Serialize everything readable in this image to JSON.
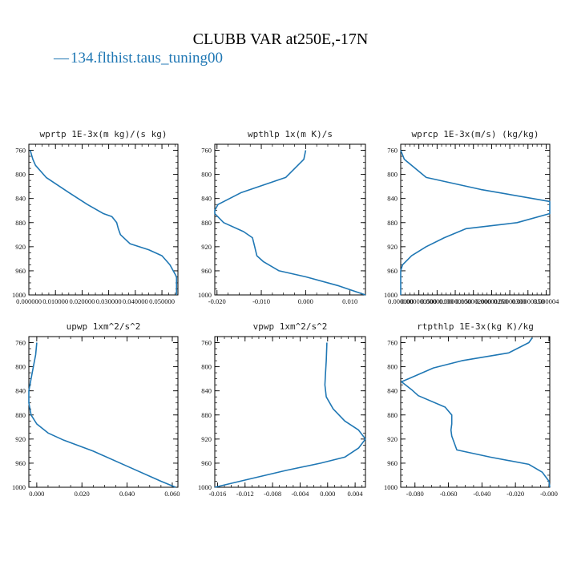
{
  "figure": {
    "title": "CLUBB VAR at250E,-17N",
    "legend": {
      "marker": "—",
      "label": "134.flthist.taus_tuning00",
      "color": "#1f77b4"
    }
  },
  "chart_data": [
    {
      "type": "line",
      "title": "wprtp  1E-3x(m kg)/(s kg)",
      "xlim": [
        0.0,
        0.056
      ],
      "ylim": [
        750,
        1000
      ],
      "y_inverted": true,
      "xticks": [
        0.0,
        0.01,
        0.02,
        0.03,
        0.04,
        0.05
      ],
      "xtick_labels": [
        "0.000000",
        "0.010000",
        "0.020000",
        "0.030000",
        "0.040000",
        "0.050000"
      ],
      "yticks": [
        760,
        800,
        840,
        880,
        920,
        960,
        1000
      ],
      "ytick_labels": [
        "760",
        "800",
        "840",
        "880",
        "920",
        "960",
        "1000"
      ],
      "series": [
        {
          "color": "#1f77b4",
          "x": [
            0.0005,
            0.0015,
            0.0025,
            0.0065,
            0.015,
            0.022,
            0.028,
            0.0312,
            0.033,
            0.0336,
            0.0344,
            0.038,
            0.045,
            0.05,
            0.053,
            0.0555,
            0.0555
          ],
          "y": [
            760,
            775,
            785,
            805,
            830,
            850,
            865,
            870,
            880,
            890,
            900,
            915,
            925,
            935,
            950,
            970,
            1000
          ]
        }
      ]
    },
    {
      "type": "line",
      "title": "wpthlp  1x(m K)/s",
      "xlim": [
        -0.0205,
        0.0135
      ],
      "ylim": [
        750,
        1000
      ],
      "y_inverted": true,
      "xticks": [
        -0.02,
        -0.01,
        0.0,
        0.01
      ],
      "xtick_labels": [
        "-0.020",
        "-0.010",
        "0.000",
        "0.010"
      ],
      "yticks": [
        760,
        800,
        840,
        880,
        920,
        960,
        1000
      ],
      "ytick_labels": [
        "760",
        "800",
        "840",
        "880",
        "920",
        "960",
        "1000"
      ],
      "series": [
        {
          "color": "#1f77b4",
          "x": [
            0.0,
            -0.0004,
            -0.0045,
            -0.0145,
            -0.0198,
            -0.0205,
            -0.0205,
            -0.0185,
            -0.014,
            -0.012,
            -0.0115,
            -0.011,
            -0.0095,
            -0.006,
            0.0,
            0.0075,
            0.0135
          ],
          "y": [
            760,
            775,
            805,
            830,
            850,
            860,
            865,
            880,
            895,
            905,
            920,
            935,
            945,
            960,
            970,
            985,
            1000
          ]
        }
      ]
    },
    {
      "type": "line",
      "title": "wprcp  1E-3x(m/s) (kg/kg)",
      "xlim": [
        0.0,
        4.1e-06
      ],
      "ylim": [
        750,
        1000
      ],
      "y_inverted": true,
      "xticks": [
        0.0,
        5e-07,
        1e-06,
        1.5e-06,
        2e-06,
        2.5e-06,
        3e-06,
        3.5e-06,
        4e-06
      ],
      "xtick_labels": [
        "0.000000",
        "0.000000500",
        "0.00000100",
        "0.00000150",
        "0.000002000",
        "0.00000250",
        "0.00000300",
        "0.00000350",
        "0.000004"
      ],
      "yticks": [
        760,
        800,
        840,
        880,
        920,
        960,
        1000
      ],
      "ytick_labels": [
        "760",
        "800",
        "840",
        "880",
        "920",
        "960",
        "1000"
      ],
      "series": [
        {
          "color": "#1f77b4",
          "x": [
            0.0,
            1e-07,
            7e-07,
            2.2e-06,
            4.1e-06,
            4.1e-06,
            3.2e-06,
            1.8e-06,
            1.2e-06,
            7e-07,
            3e-07,
            5e-08,
            0.0,
            0.0
          ],
          "y": [
            760,
            775,
            805,
            825,
            845,
            865,
            880,
            890,
            905,
            920,
            935,
            950,
            960,
            1000
          ]
        }
      ]
    },
    {
      "type": "line",
      "title": "upwp  1xm^2/s^2",
      "xlim": [
        -0.0035,
        0.0625
      ],
      "ylim": [
        750,
        1000
      ],
      "y_inverted": true,
      "xticks": [
        0.0,
        0.02,
        0.04,
        0.06
      ],
      "xtick_labels": [
        "0.000",
        "0.020",
        "0.040",
        "0.060"
      ],
      "yticks": [
        760,
        800,
        840,
        880,
        920,
        960,
        1000
      ],
      "ytick_labels": [
        "760",
        "800",
        "840",
        "880",
        "920",
        "960",
        "1000"
      ],
      "series": [
        {
          "color": "#1f77b4",
          "x": [
            0.0,
            -0.0005,
            -0.0015,
            -0.0025,
            -0.0035,
            -0.0035,
            -0.0025,
            0.0,
            0.005,
            0.012,
            0.025,
            0.04,
            0.055,
            0.0615
          ],
          "y": [
            760,
            780,
            800,
            820,
            840,
            860,
            880,
            895,
            910,
            922,
            940,
            965,
            990,
            1000
          ]
        }
      ]
    },
    {
      "type": "line",
      "title": "vpwp  1xm^2/s^2",
      "xlim": [
        -0.0164,
        0.0055
      ],
      "ylim": [
        750,
        1000
      ],
      "y_inverted": true,
      "xticks": [
        -0.016,
        -0.012,
        -0.008,
        -0.004,
        0.0,
        0.004
      ],
      "xtick_labels": [
        "-0.016",
        "-0.012",
        "-0.008",
        "-0.004",
        "0.000",
        "0.004"
      ],
      "yticks": [
        760,
        800,
        840,
        880,
        920,
        960,
        1000
      ],
      "ytick_labels": [
        "760",
        "800",
        "840",
        "880",
        "920",
        "960",
        "1000"
      ],
      "series": [
        {
          "color": "#1f77b4",
          "x": [
            -0.0001,
            -0.0002,
            -0.0003,
            -0.0004,
            -0.0002,
            0.0008,
            0.0025,
            0.0045,
            0.0055,
            0.0045,
            0.0025,
            -0.001,
            -0.006,
            -0.012,
            -0.0164
          ],
          "y": [
            760,
            790,
            810,
            830,
            850,
            870,
            890,
            905,
            920,
            935,
            950,
            960,
            972,
            988,
            1000
          ]
        }
      ]
    },
    {
      "type": "line",
      "title": "rtpthlp  1E-3x(kg K)/kg",
      "xlim": [
        -0.0885,
        0.0005
      ],
      "ylim": [
        750,
        1000
      ],
      "y_inverted": true,
      "xticks": [
        -0.08,
        -0.06,
        -0.04,
        -0.02,
        0.0
      ],
      "xtick_labels": [
        "-0.080",
        "-0.060",
        "-0.040",
        "-0.020",
        "-0.000"
      ],
      "yticks": [
        760,
        800,
        840,
        880,
        920,
        960,
        1000
      ],
      "ytick_labels": [
        "760",
        "800",
        "840",
        "880",
        "920",
        "960",
        "1000"
      ],
      "series": [
        {
          "color": "#1f77b4",
          "x": [
            -0.01,
            -0.012,
            -0.024,
            -0.052,
            -0.069,
            -0.088,
            -0.082,
            -0.078,
            -0.062,
            -0.058,
            -0.058,
            -0.0585,
            -0.058,
            -0.055,
            -0.035,
            -0.012,
            -0.004,
            0.0,
            0.0005
          ],
          "y": [
            752,
            760,
            777,
            790,
            802,
            825,
            838,
            848,
            867,
            880,
            895,
            905,
            915,
            938,
            950,
            962,
            975,
            990,
            1000
          ]
        }
      ]
    }
  ]
}
